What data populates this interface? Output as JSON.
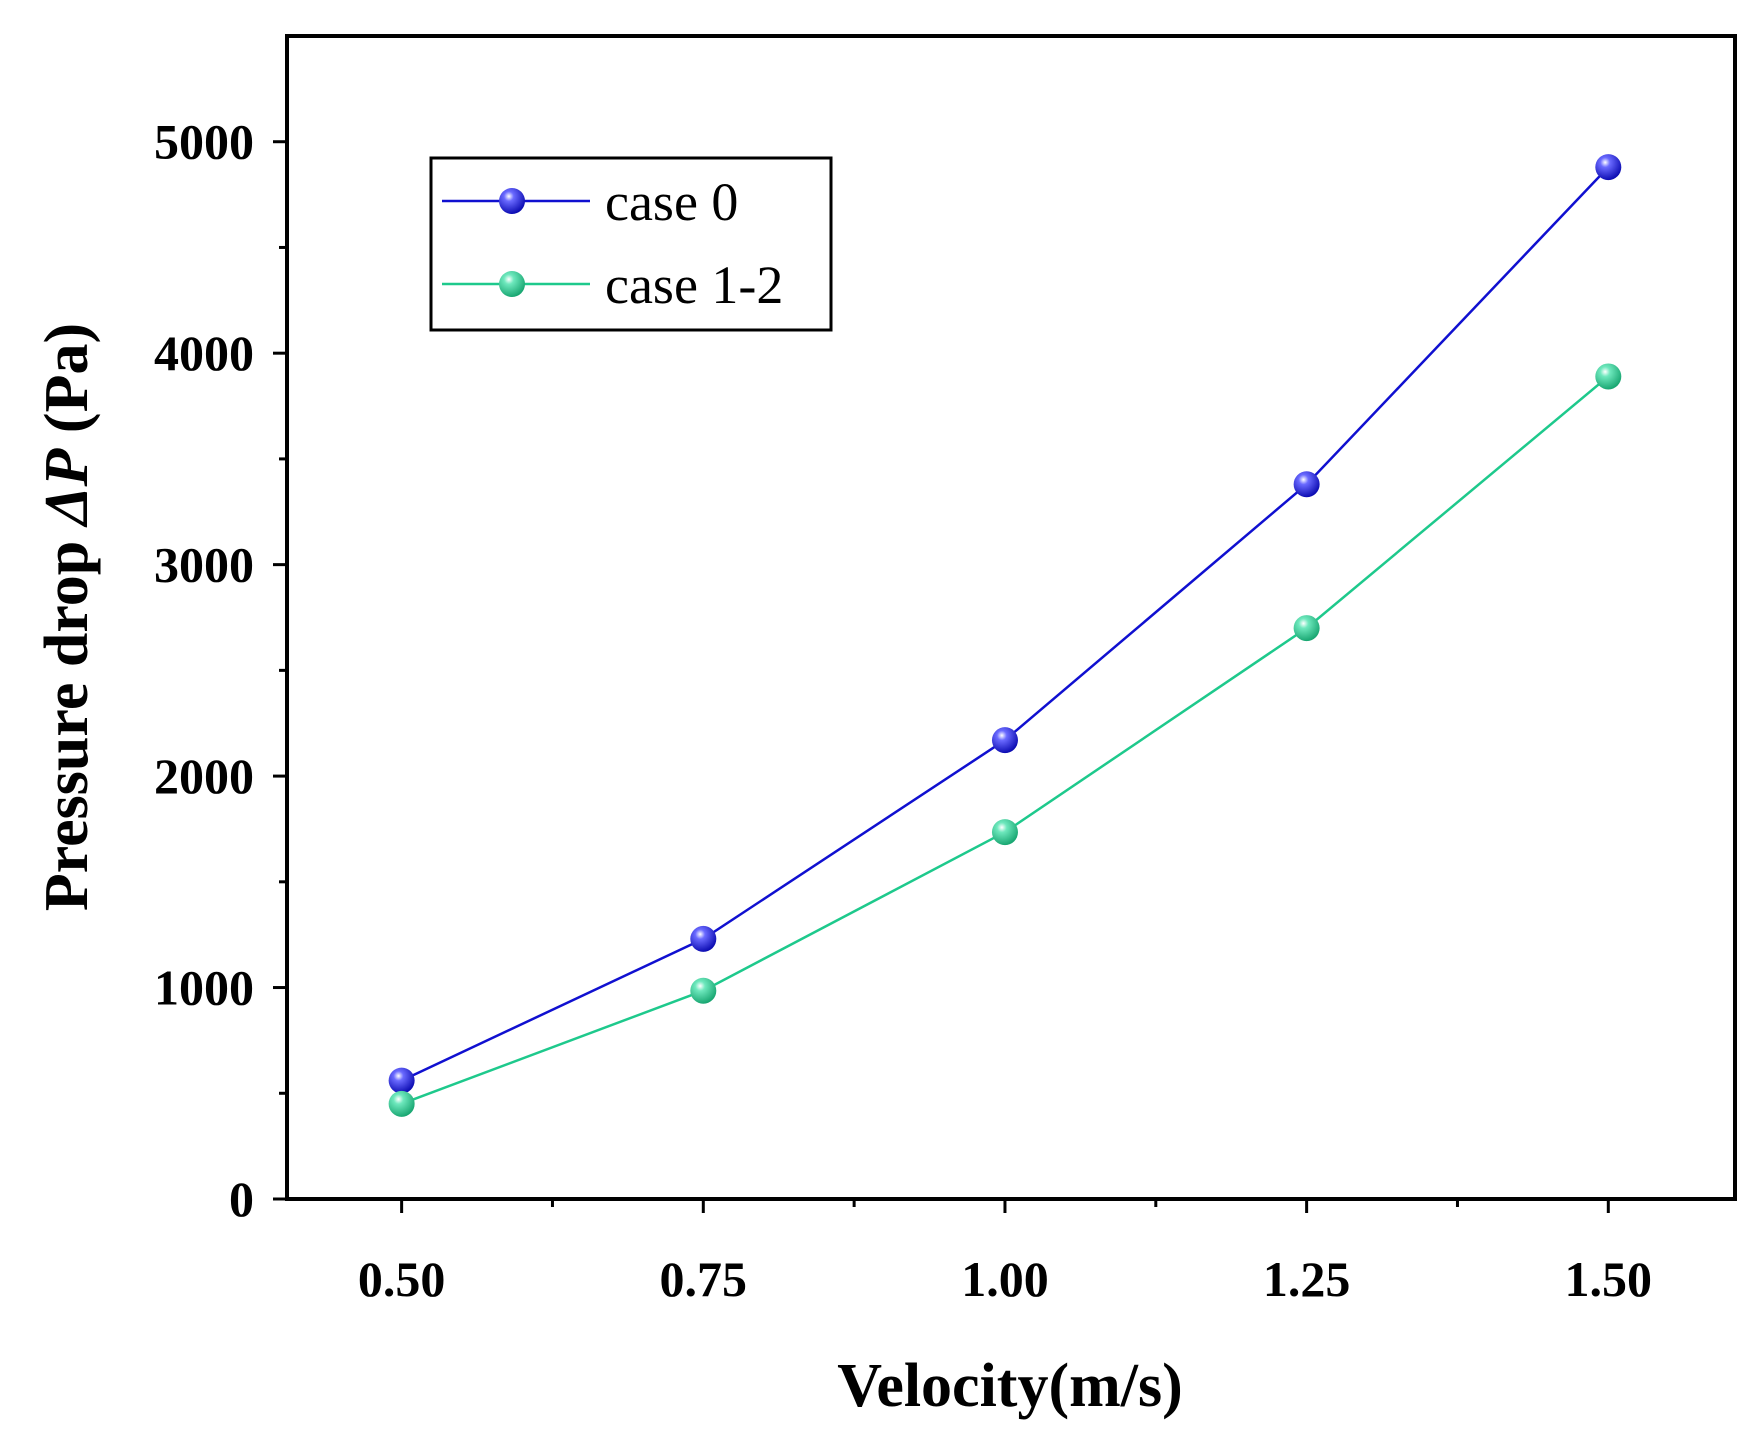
{
  "chart_data": {
    "type": "line",
    "title": "",
    "xlabel": "Velocity(m/s)",
    "ylabel": {
      "prefix": "Pressure drop ",
      "symbol": "ΔP",
      "suffix": " (Pa)"
    },
    "x": [
      0.5,
      0.75,
      1.0,
      1.25,
      1.5
    ],
    "x_tick_labels": [
      "0.50",
      "0.75",
      "1.00",
      "1.25",
      "1.50"
    ],
    "y_tick_labels": [
      "0",
      "1000",
      "2000",
      "3000",
      "4000",
      "5000"
    ],
    "xlim": [
      0.405,
      1.605
    ],
    "ylim": [
      0,
      5500
    ],
    "x_major_ticks": [
      0.5,
      0.75,
      1.0,
      1.25,
      1.5
    ],
    "x_minor_ticks": [
      0.625,
      0.875,
      1.125,
      1.375
    ],
    "y_major_ticks": [
      0,
      1000,
      2000,
      3000,
      4000,
      5000
    ],
    "y_minor_ticks": [
      500,
      1500,
      2500,
      3500,
      4500
    ],
    "legend_position": "top-left",
    "series": [
      {
        "name": "case 0",
        "color": "#1010d0",
        "values": [
          560,
          1230,
          2170,
          3380,
          4880
        ]
      },
      {
        "name": "case 1-2",
        "color": "#1ec98c",
        "values": [
          450,
          985,
          1735,
          2700,
          3890
        ]
      }
    ]
  }
}
